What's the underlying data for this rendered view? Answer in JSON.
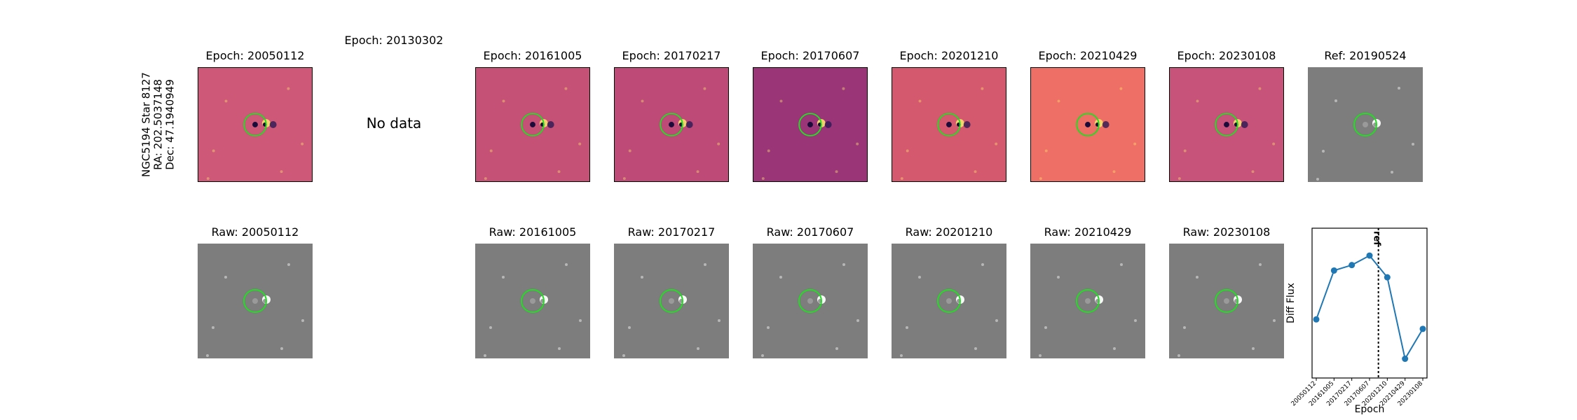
{
  "side_label": [
    "NGC5194 Star 8127",
    "RA: 202.5037148",
    "Dec: 47.1940949"
  ],
  "top_row": [
    {
      "title": "Epoch: 20050112",
      "kind": "diff",
      "bg": "#ce5878"
    },
    {
      "title": "Epoch: 20130302",
      "kind": "nodata",
      "text": "No data"
    },
    {
      "title": "Epoch: 20161005",
      "kind": "diff",
      "bg": "#c65177"
    },
    {
      "title": "Epoch: 20170217",
      "kind": "diff",
      "bg": "#be4a78"
    },
    {
      "title": "Epoch: 20170607",
      "kind": "diff",
      "bg": "#9a3678"
    },
    {
      "title": "Epoch: 20201210",
      "kind": "diff",
      "bg": "#d5596e"
    },
    {
      "title": "Epoch: 20210429",
      "kind": "diff",
      "bg": "#ee6f66"
    },
    {
      "title": "Epoch: 20230108",
      "kind": "diff",
      "bg": "#c7527a"
    },
    {
      "title": "Ref: 20190524",
      "kind": "ref",
      "bg": "#7d7d7d"
    }
  ],
  "bottom_row": [
    {
      "title": "Raw: 20050112"
    },
    null,
    {
      "title": "Raw: 20161005"
    },
    {
      "title": "Raw: 20170217"
    },
    {
      "title": "Raw: 20170607"
    },
    {
      "title": "Raw: 20201210"
    },
    {
      "title": "Raw: 20210429"
    },
    {
      "title": "Raw: 20230108"
    }
  ],
  "colors": {
    "circle": "#22dd22",
    "line": "#1f77b4",
    "gray": "#7d7d7d"
  },
  "chart_data": {
    "type": "line",
    "categories": [
      "20050112",
      "20161005",
      "20170217",
      "20170607",
      "20201210",
      "20210429",
      "20230108"
    ],
    "series": [
      {
        "values": [
          0.38,
          0.74,
          0.78,
          0.85,
          0.69,
          0.09,
          0.31
        ]
      }
    ],
    "ref_marker": {
      "label": "ref",
      "position_between": [
        "20170607",
        "20201210"
      ]
    },
    "xlabel": "Epoch",
    "ylabel": "Diff Flux",
    "ylim": [
      0,
      1
    ],
    "yticks_shown": false,
    "grid": false
  }
}
